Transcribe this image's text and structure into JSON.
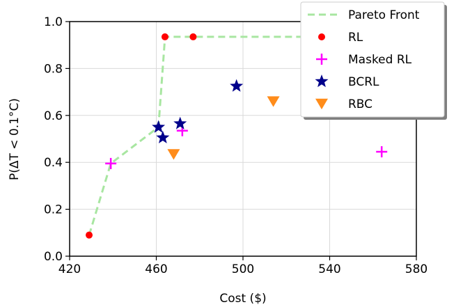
{
  "chart_data": {
    "type": "scatter",
    "xlabel": "Cost ($)",
    "ylabel": "P(ΔT < 0.1°C)",
    "xlim": [
      420,
      580
    ],
    "ylim": [
      0.0,
      1.0
    ],
    "xticks": [
      420,
      460,
      500,
      540,
      580
    ],
    "yticks": [
      0.0,
      0.2,
      0.4,
      0.6,
      0.8,
      1.0
    ],
    "xtick_labels": [
      "420",
      "460",
      "500",
      "540",
      "580"
    ],
    "ytick_labels": [
      "0.0",
      "0.2",
      "0.4",
      "0.6",
      "0.8",
      "1.0"
    ],
    "grid": true,
    "legend_position": "top-right",
    "series": [
      {
        "name": "Pareto Front",
        "kind": "line",
        "style": "dashed",
        "color": "#a8e6a1",
        "points": [
          [
            429,
            0.09
          ],
          [
            439,
            0.395
          ],
          [
            461,
            0.55
          ],
          [
            464,
            0.935
          ],
          [
            477,
            0.935
          ],
          [
            580,
            0.935
          ]
        ]
      },
      {
        "name": "RL",
        "kind": "scatter",
        "marker": "circle",
        "color": "#ff0000",
        "points": [
          [
            429,
            0.09
          ],
          [
            464,
            0.935
          ],
          [
            477,
            0.935
          ]
        ]
      },
      {
        "name": "Masked RL",
        "kind": "scatter",
        "marker": "plus",
        "color": "#ff00ff",
        "points": [
          [
            439,
            0.395
          ],
          [
            472,
            0.535
          ],
          [
            564,
            0.445
          ]
        ]
      },
      {
        "name": "BCRL",
        "kind": "scatter",
        "marker": "star",
        "color": "#00008b",
        "points": [
          [
            461,
            0.55
          ],
          [
            463,
            0.505
          ],
          [
            471,
            0.565
          ],
          [
            497,
            0.725
          ]
        ]
      },
      {
        "name": "RBC",
        "kind": "scatter",
        "marker": "triangle-down",
        "color": "#ff8c1a",
        "points": [
          [
            468,
            0.435
          ],
          [
            514,
            0.66
          ]
        ]
      }
    ]
  }
}
